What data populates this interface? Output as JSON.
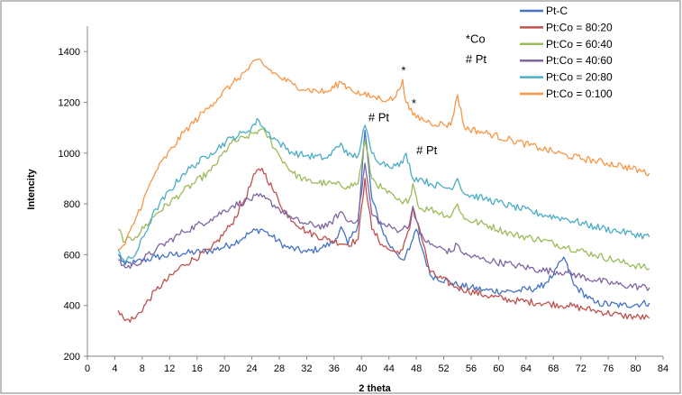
{
  "chart_data": {
    "type": "line",
    "title": "",
    "xlabel": "2 theta",
    "ylabel": "Intencity",
    "xlim": [
      0,
      84
    ],
    "ylim": [
      200,
      1500
    ],
    "xticks": [
      0,
      4,
      8,
      12,
      16,
      20,
      24,
      28,
      32,
      36,
      40,
      44,
      48,
      52,
      56,
      60,
      64,
      68,
      72,
      76,
      80,
      84
    ],
    "yticks": [
      200,
      400,
      600,
      800,
      1000,
      1200,
      1400
    ],
    "legend_position": "top-right",
    "grid": false,
    "series": [
      {
        "name": "Pt-C",
        "color": "#4472c4",
        "points": [
          [
            4.5,
            600
          ],
          [
            5.5,
            560
          ],
          [
            7,
            570
          ],
          [
            10,
            590
          ],
          [
            14,
            605
          ],
          [
            18,
            615
          ],
          [
            21,
            640
          ],
          [
            24,
            690
          ],
          [
            25.5,
            700
          ],
          [
            27,
            670
          ],
          [
            29,
            630
          ],
          [
            32,
            610
          ],
          [
            34,
            625
          ],
          [
            36,
            650
          ],
          [
            37,
            710
          ],
          [
            38,
            640
          ],
          [
            39.5,
            720
          ],
          [
            40.5,
            1090
          ],
          [
            41.5,
            820
          ],
          [
            43,
            700
          ],
          [
            44,
            640
          ],
          [
            45,
            610
          ],
          [
            46,
            580
          ],
          [
            47,
            620
          ],
          [
            48,
            700
          ],
          [
            49,
            610
          ],
          [
            50,
            520
          ],
          [
            54,
            480
          ],
          [
            58,
            460
          ],
          [
            62,
            455
          ],
          [
            66,
            470
          ],
          [
            68,
            520
          ],
          [
            69.5,
            590
          ],
          [
            71,
            480
          ],
          [
            74,
            410
          ],
          [
            78,
            400
          ],
          [
            82,
            410
          ]
        ]
      },
      {
        "name": "Pt:Co = 80:20",
        "color": "#c0504d",
        "points": [
          [
            4.5,
            380
          ],
          [
            5.5,
            340
          ],
          [
            7,
            350
          ],
          [
            10,
            460
          ],
          [
            14,
            560
          ],
          [
            18,
            620
          ],
          [
            21,
            720
          ],
          [
            23,
            820
          ],
          [
            24.5,
            920
          ],
          [
            25.5,
            940
          ],
          [
            27,
            860
          ],
          [
            29,
            760
          ],
          [
            32,
            690
          ],
          [
            35,
            660
          ],
          [
            38,
            640
          ],
          [
            39.5,
            660
          ],
          [
            40.5,
            900
          ],
          [
            41.5,
            700
          ],
          [
            43,
            640
          ],
          [
            44,
            620
          ],
          [
            45,
            610
          ],
          [
            46,
            620
          ],
          [
            47,
            700
          ],
          [
            47.5,
            790
          ],
          [
            48.5,
            700
          ],
          [
            50,
            530
          ],
          [
            54,
            470
          ],
          [
            58,
            440
          ],
          [
            62,
            420
          ],
          [
            66,
            410
          ],
          [
            70,
            400
          ],
          [
            74,
            380
          ],
          [
            78,
            360
          ],
          [
            82,
            350
          ]
        ]
      },
      {
        "name": "Pt:Co = 60:40",
        "color": "#9bbb59",
        "points": [
          [
            4.5,
            700
          ],
          [
            5.5,
            650
          ],
          [
            7,
            670
          ],
          [
            10,
            760
          ],
          [
            14,
            850
          ],
          [
            18,
            930
          ],
          [
            21,
            1040
          ],
          [
            23,
            1060
          ],
          [
            25,
            1090
          ],
          [
            26,
            1080
          ],
          [
            28,
            990
          ],
          [
            30,
            920
          ],
          [
            32,
            890
          ],
          [
            35,
            880
          ],
          [
            38,
            870
          ],
          [
            39.5,
            880
          ],
          [
            40.5,
            1050
          ],
          [
            41.5,
            900
          ],
          [
            43,
            860
          ],
          [
            45,
            820
          ],
          [
            46,
            800
          ],
          [
            47,
            820
          ],
          [
            47.5,
            880
          ],
          [
            48.5,
            780
          ],
          [
            50,
            780
          ],
          [
            53,
            750
          ],
          [
            54,
            800
          ],
          [
            55,
            740
          ],
          [
            58,
            720
          ],
          [
            62,
            680
          ],
          [
            66,
            660
          ],
          [
            70,
            630
          ],
          [
            74,
            600
          ],
          [
            78,
            570
          ],
          [
            82,
            545
          ]
        ]
      },
      {
        "name": "Pt:Co = 40:60",
        "color": "#8064a2",
        "points": [
          [
            4.5,
            580
          ],
          [
            5.5,
            550
          ],
          [
            7,
            560
          ],
          [
            10,
            620
          ],
          [
            14,
            690
          ],
          [
            18,
            740
          ],
          [
            21,
            790
          ],
          [
            23,
            810
          ],
          [
            25,
            830
          ],
          [
            26,
            820
          ],
          [
            28,
            780
          ],
          [
            30,
            740
          ],
          [
            32,
            720
          ],
          [
            35,
            710
          ],
          [
            37,
            770
          ],
          [
            38,
            730
          ],
          [
            39.5,
            740
          ],
          [
            40.5,
            960
          ],
          [
            41.5,
            760
          ],
          [
            43,
            720
          ],
          [
            45,
            700
          ],
          [
            46,
            700
          ],
          [
            47,
            720
          ],
          [
            47.5,
            790
          ],
          [
            48.5,
            680
          ],
          [
            50,
            640
          ],
          [
            53,
            610
          ],
          [
            54,
            640
          ],
          [
            55,
            600
          ],
          [
            58,
            580
          ],
          [
            62,
            560
          ],
          [
            66,
            540
          ],
          [
            70,
            530
          ],
          [
            74,
            500
          ],
          [
            78,
            480
          ],
          [
            82,
            470
          ]
        ]
      },
      {
        "name": "Pt:Co = 20:80",
        "color": "#4bacc6",
        "points": [
          [
            4.5,
            620
          ],
          [
            5.5,
            570
          ],
          [
            7,
            600
          ],
          [
            10,
            780
          ],
          [
            14,
            920
          ],
          [
            18,
            1000
          ],
          [
            21,
            1060
          ],
          [
            23,
            1080
          ],
          [
            25,
            1130
          ],
          [
            26,
            1090
          ],
          [
            28,
            1040
          ],
          [
            30,
            1000
          ],
          [
            32,
            990
          ],
          [
            35,
            980
          ],
          [
            37,
            1040
          ],
          [
            38,
            990
          ],
          [
            39.5,
            990
          ],
          [
            40.5,
            1110
          ],
          [
            41.5,
            1000
          ],
          [
            43,
            960
          ],
          [
            45,
            950
          ],
          [
            46,
            960
          ],
          [
            46.5,
            1000
          ],
          [
            47.5,
            900
          ],
          [
            48.5,
            900
          ],
          [
            50,
            880
          ],
          [
            53,
            860
          ],
          [
            54,
            900
          ],
          [
            55,
            840
          ],
          [
            58,
            820
          ],
          [
            62,
            790
          ],
          [
            66,
            760
          ],
          [
            70,
            740
          ],
          [
            74,
            710
          ],
          [
            78,
            690
          ],
          [
            82,
            670
          ]
        ]
      },
      {
        "name": "Pt:Co = 0:100",
        "color": "#f79646",
        "points": [
          [
            4.5,
            620
          ],
          [
            5.5,
            640
          ],
          [
            7,
            740
          ],
          [
            10,
            930
          ],
          [
            14,
            1080
          ],
          [
            18,
            1190
          ],
          [
            21,
            1270
          ],
          [
            23,
            1320
          ],
          [
            25,
            1370
          ],
          [
            26,
            1340
          ],
          [
            28,
            1300
          ],
          [
            30,
            1270
          ],
          [
            32,
            1250
          ],
          [
            35,
            1240
          ],
          [
            37,
            1280
          ],
          [
            38,
            1260
          ],
          [
            40,
            1230
          ],
          [
            42,
            1220
          ],
          [
            44,
            1210
          ],
          [
            45,
            1220
          ],
          [
            46,
            1290
          ],
          [
            46.5,
            1200
          ],
          [
            47.5,
            1150
          ],
          [
            50,
            1120
          ],
          [
            53,
            1110
          ],
          [
            54,
            1230
          ],
          [
            55,
            1100
          ],
          [
            58,
            1080
          ],
          [
            62,
            1050
          ],
          [
            66,
            1020
          ],
          [
            70,
            990
          ],
          [
            74,
            970
          ],
          [
            78,
            950
          ],
          [
            82,
            920
          ]
        ]
      }
    ],
    "annotations": [
      {
        "text": "*Co",
        "x": 55.2,
        "y": 1435
      },
      {
        "text": "# Pt",
        "x": 55.2,
        "y": 1355
      },
      {
        "text": "*",
        "x": 45.8,
        "y": 1310
      },
      {
        "text": "*",
        "x": 47.3,
        "y": 1180
      },
      {
        "text": "# Pt",
        "x": 41,
        "y": 1125
      },
      {
        "text": "# Pt",
        "x": 48,
        "y": 995
      }
    ]
  }
}
